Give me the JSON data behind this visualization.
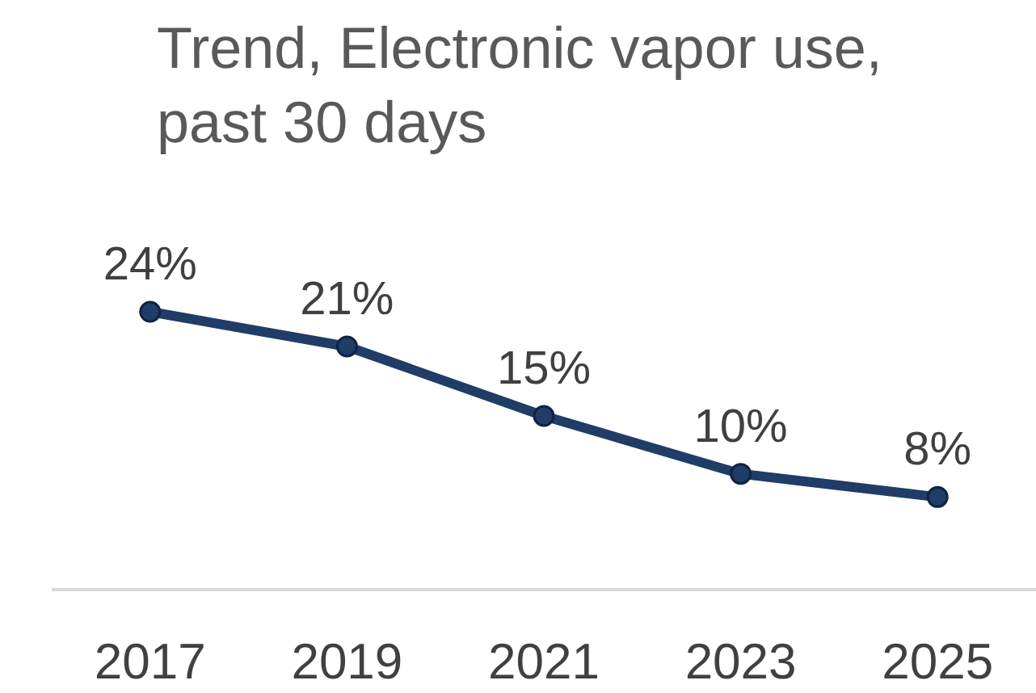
{
  "chart_data": {
    "type": "line",
    "title": "Trend, Electronic vapor use, past 30 days",
    "categories": [
      "2017",
      "2019",
      "2021",
      "2023",
      "2025"
    ],
    "series": [
      {
        "color": "#1f3d66",
        "values": [
          24,
          21,
          15,
          10,
          8
        ],
        "value_labels": [
          "24%",
          "21%",
          "15%",
          "10%",
          "8%"
        ]
      }
    ],
    "marker": "circle",
    "line_style": "solid",
    "tick_labels": "x"
  }
}
